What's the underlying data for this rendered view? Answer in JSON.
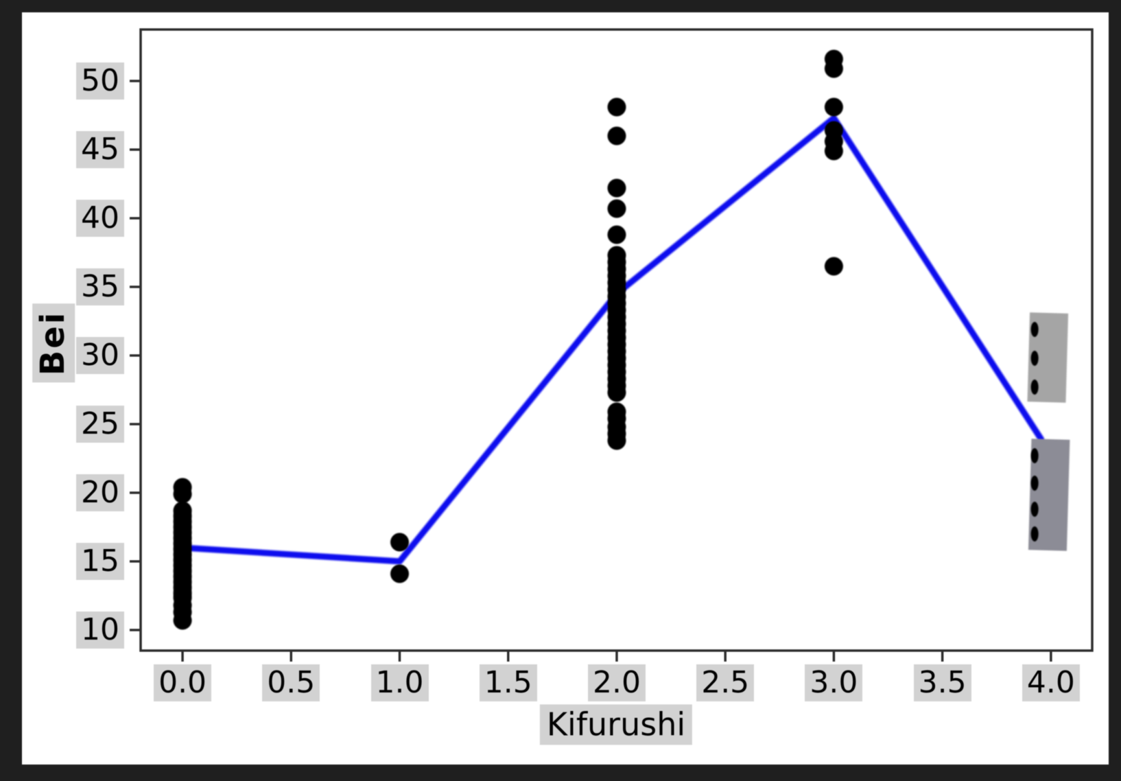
{
  "frame": {
    "background": "#1f1f1f",
    "figure_background": "#ffffff"
  },
  "chart_data": {
    "type": "scatter",
    "title": "",
    "xlabel": "Kifurushi",
    "ylabel": "Bei",
    "xlim": [
      -0.193,
      4.19
    ],
    "ylim": [
      8.5,
      53.75
    ],
    "grid": false,
    "legend": "none",
    "x_ticks": [
      {
        "value": 0.0,
        "label": "0.0"
      },
      {
        "value": 0.5,
        "label": "0.5"
      },
      {
        "value": 1.0,
        "label": "1.0"
      },
      {
        "value": 1.5,
        "label": "1.5"
      },
      {
        "value": 2.0,
        "label": "2.0"
      },
      {
        "value": 2.5,
        "label": "2.5"
      },
      {
        "value": 3.0,
        "label": "3.0"
      },
      {
        "value": 3.5,
        "label": "3.5"
      },
      {
        "value": 4.0,
        "label": "4.0"
      }
    ],
    "y_ticks": [
      {
        "value": 10,
        "label": "10"
      },
      {
        "value": 15,
        "label": "15"
      },
      {
        "value": 20,
        "label": "20"
      },
      {
        "value": 25,
        "label": "25"
      },
      {
        "value": 30,
        "label": "30"
      },
      {
        "value": 35,
        "label": "35"
      },
      {
        "value": 40,
        "label": "40"
      },
      {
        "value": 45,
        "label": "45"
      },
      {
        "value": 50,
        "label": "50"
      }
    ],
    "styles": {
      "spine_color": "#2e2e2e",
      "tick_color": "#2e2e2e",
      "label_bg": "#d2d2d2",
      "scatter_color": "#000000",
      "line_color": "#0c0cee"
    },
    "series": [
      {
        "name": "observations",
        "type": "scatter",
        "color": "#000000",
        "groups": [
          {
            "x": 0,
            "ys": [
              20.4,
              19.9,
              18.7,
              18.3,
              17.9,
              17.5,
              17.1,
              16.7,
              16.3,
              15.9,
              15.5,
              15.1,
              14.7,
              14.3,
              13.9,
              13.5,
              13.1,
              12.7,
              12.35,
              11.8,
              11.3,
              10.7
            ]
          },
          {
            "x": 1,
            "ys": [
              16.4,
              14.1
            ]
          },
          {
            "x": 2,
            "ys": [
              48.1,
              46.0,
              42.2,
              40.7,
              38.8,
              37.3,
              36.8,
              36.3,
              35.8,
              35.3,
              34.8,
              34.3,
              33.8,
              33.3,
              32.8,
              32.3,
              31.8,
              31.3,
              30.8,
              30.3,
              29.8,
              29.3,
              28.8,
              28.3,
              27.8,
              27.3,
              25.9,
              25.4,
              24.8,
              24.3,
              23.8
            ]
          },
          {
            "x": 3,
            "ys": [
              51.6,
              50.9,
              48.1,
              46.4,
              45.6,
              44.9,
              36.5
            ]
          }
        ]
      },
      {
        "name": "mean-line",
        "type": "line",
        "color": "#0c0cee",
        "points": [
          [
            0,
            16.0
          ],
          [
            1,
            15.0
          ],
          [
            2,
            34.5
          ],
          [
            3,
            47.3
          ],
          [
            3.955,
            23.9
          ]
        ]
      },
      {
        "name": "masked-observations",
        "type": "scatter-ellipse",
        "color": "#000000",
        "x": 3.925,
        "ys": [
          31.9,
          29.8,
          27.7,
          22.7,
          20.7,
          18.8,
          17.0
        ]
      }
    ],
    "overlays": [
      {
        "name": "gray-box-upper",
        "color": "#a5a5a5",
        "x_range": [
          3.897,
          4.074
        ],
        "y_range": [
          26.6,
          33.1
        ],
        "rotation_deg": 1.6
      },
      {
        "name": "gray-box-lower",
        "color": "#8c8c96",
        "x_range": [
          3.903,
          4.08
        ],
        "y_range": [
          15.8,
          23.9
        ],
        "rotation_deg": 1.6
      }
    ]
  }
}
